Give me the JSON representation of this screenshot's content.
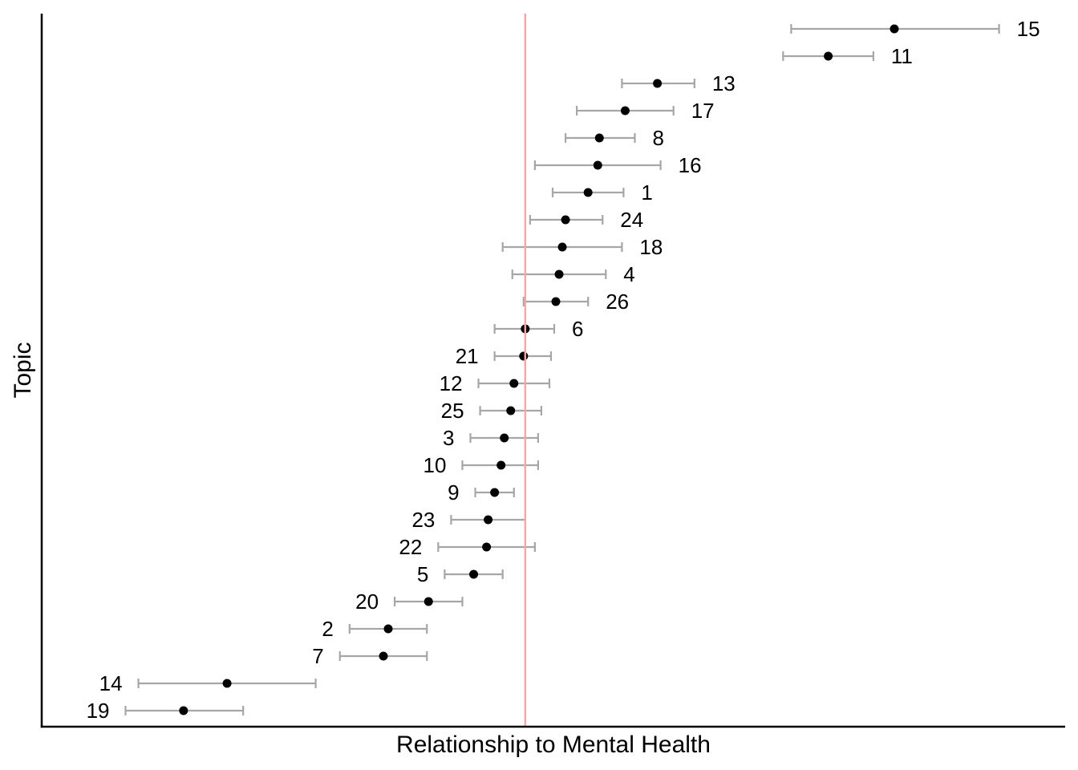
{
  "chart_data": {
    "type": "scatter",
    "subtype": "forest-plot",
    "title": "",
    "xlabel": "Relationship to Mental Health",
    "ylabel": "Topic",
    "xlim": [
      -0.3,
      0.335
    ],
    "reference_line": {
      "x": 0,
      "color": "#ffa3a3"
    },
    "grid": false,
    "colors": {
      "point": "#000000",
      "error_bar": "#a6a6a6"
    },
    "points": [
      {
        "label": "15",
        "estimate": 0.229,
        "lower": 0.165,
        "upper": 0.294
      },
      {
        "label": "11",
        "estimate": 0.188,
        "lower": 0.16,
        "upper": 0.216
      },
      {
        "label": "13",
        "estimate": 0.082,
        "lower": 0.06,
        "upper": 0.105
      },
      {
        "label": "17",
        "estimate": 0.062,
        "lower": 0.032,
        "upper": 0.092
      },
      {
        "label": "8",
        "estimate": 0.046,
        "lower": 0.025,
        "upper": 0.068
      },
      {
        "label": "16",
        "estimate": 0.045,
        "lower": 0.006,
        "upper": 0.084
      },
      {
        "label": "1",
        "estimate": 0.039,
        "lower": 0.017,
        "upper": 0.061
      },
      {
        "label": "24",
        "estimate": 0.025,
        "lower": 0.003,
        "upper": 0.048
      },
      {
        "label": "18",
        "estimate": 0.023,
        "lower": -0.014,
        "upper": 0.06
      },
      {
        "label": "4",
        "estimate": 0.021,
        "lower": -0.008,
        "upper": 0.05
      },
      {
        "label": "26",
        "estimate": 0.019,
        "lower": -0.001,
        "upper": 0.039
      },
      {
        "label": "6",
        "estimate": -0.0,
        "lower": -0.019,
        "upper": 0.018
      },
      {
        "label": "21",
        "estimate": -0.001,
        "lower": -0.019,
        "upper": 0.016
      },
      {
        "label": "12",
        "estimate": -0.007,
        "lower": -0.029,
        "upper": 0.015
      },
      {
        "label": "25",
        "estimate": -0.009,
        "lower": -0.028,
        "upper": 0.01
      },
      {
        "label": "3",
        "estimate": -0.013,
        "lower": -0.034,
        "upper": 0.008
      },
      {
        "label": "10",
        "estimate": -0.015,
        "lower": -0.039,
        "upper": 0.008
      },
      {
        "label": "9",
        "estimate": -0.019,
        "lower": -0.031,
        "upper": -0.007
      },
      {
        "label": "23",
        "estimate": -0.023,
        "lower": -0.046,
        "upper": 0.0
      },
      {
        "label": "22",
        "estimate": -0.024,
        "lower": -0.054,
        "upper": 0.006
      },
      {
        "label": "5",
        "estimate": -0.032,
        "lower": -0.05,
        "upper": -0.014
      },
      {
        "label": "20",
        "estimate": -0.06,
        "lower": -0.081,
        "upper": -0.039
      },
      {
        "label": "2",
        "estimate": -0.085,
        "lower": -0.109,
        "upper": -0.061
      },
      {
        "label": "7",
        "estimate": -0.088,
        "lower": -0.115,
        "upper": -0.061
      },
      {
        "label": "14",
        "estimate": -0.185,
        "lower": -0.24,
        "upper": -0.13
      },
      {
        "label": "19",
        "estimate": -0.212,
        "lower": -0.248,
        "upper": -0.175
      }
    ]
  }
}
